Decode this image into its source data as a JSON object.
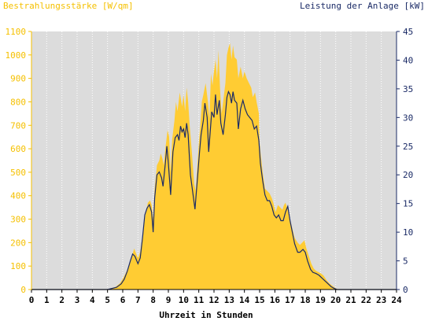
{
  "chart_data": {
    "type": "area",
    "ylabel_left": "Bestrahlungsstärke [W/qm]",
    "ylabel_right": "Leistung der Anlage [kW]",
    "xlabel": "Uhrzeit in Stunden",
    "xlim": [
      0,
      24
    ],
    "ylim_left": [
      0,
      1100
    ],
    "ylim_right": [
      0,
      45
    ],
    "x_ticks": [
      "0",
      "1",
      "2",
      "3",
      "4",
      "5",
      "6",
      "7",
      "8",
      "9",
      "10",
      "11",
      "12",
      "13",
      "14",
      "15",
      "16",
      "17",
      "18",
      "19",
      "20",
      "21",
      "22",
      "23",
      "24"
    ],
    "y_ticks_left": [
      "0",
      "100",
      "200",
      "300",
      "400",
      "500",
      "600",
      "700",
      "800",
      "900",
      "1000",
      "1100"
    ],
    "y_ticks_right": [
      "0",
      "5",
      "10",
      "15",
      "20",
      "25",
      "30",
      "35",
      "40",
      "45"
    ],
    "grid": "vertical dotted",
    "colors": {
      "irradiance": "#ffcc33",
      "power": "#1a2a66",
      "plot_background": "#dcdcdc",
      "left_axis": "#f5c000",
      "right_axis": "#1a2a66"
    },
    "series": [
      {
        "name": "Bestrahlungsstärke [W/qm]",
        "axis": "left",
        "style": "area",
        "points": [
          [
            0,
            0
          ],
          [
            5,
            0
          ],
          [
            5.2,
            5
          ],
          [
            5.5,
            10
          ],
          [
            5.8,
            25
          ],
          [
            6.0,
            45
          ],
          [
            6.2,
            70
          ],
          [
            6.4,
            100
          ],
          [
            6.6,
            140
          ],
          [
            6.75,
            175
          ],
          [
            6.9,
            150
          ],
          [
            7.0,
            135
          ],
          [
            7.15,
            160
          ],
          [
            7.3,
            230
          ],
          [
            7.5,
            320
          ],
          [
            7.65,
            370
          ],
          [
            7.8,
            380
          ],
          [
            7.9,
            360
          ],
          [
            8.0,
            300
          ],
          [
            8.1,
            430
          ],
          [
            8.25,
            530
          ],
          [
            8.4,
            550
          ],
          [
            8.5,
            580
          ],
          [
            8.6,
            560
          ],
          [
            8.7,
            530
          ],
          [
            8.8,
            600
          ],
          [
            8.95,
            680
          ],
          [
            9.05,
            650
          ],
          [
            9.15,
            500
          ],
          [
            9.25,
            640
          ],
          [
            9.4,
            720
          ],
          [
            9.5,
            800
          ],
          [
            9.6,
            760
          ],
          [
            9.75,
            840
          ],
          [
            9.9,
            780
          ],
          [
            10.0,
            830
          ],
          [
            10.1,
            760
          ],
          [
            10.2,
            860
          ],
          [
            10.3,
            800
          ],
          [
            10.4,
            700
          ],
          [
            10.55,
            580
          ],
          [
            10.7,
            450
          ],
          [
            10.8,
            420
          ],
          [
            10.9,
            520
          ],
          [
            11.0,
            620
          ],
          [
            11.1,
            700
          ],
          [
            11.2,
            800
          ],
          [
            11.3,
            830
          ],
          [
            11.45,
            880
          ],
          [
            11.6,
            800
          ],
          [
            11.7,
            730
          ],
          [
            11.8,
            920
          ],
          [
            11.9,
            870
          ],
          [
            12.0,
            930
          ],
          [
            12.1,
            980
          ],
          [
            12.2,
            900
          ],
          [
            12.3,
            1020
          ],
          [
            12.4,
            850
          ],
          [
            12.5,
            750
          ],
          [
            12.6,
            800
          ],
          [
            12.75,
            880
          ],
          [
            12.85,
            1000
          ],
          [
            12.95,
            1030
          ],
          [
            13.05,
            1050
          ],
          [
            13.15,
            980
          ],
          [
            13.25,
            1040
          ],
          [
            13.35,
            990
          ],
          [
            13.5,
            980
          ],
          [
            13.6,
            900
          ],
          [
            13.75,
            950
          ],
          [
            13.9,
            900
          ],
          [
            14.0,
            930
          ],
          [
            14.15,
            900
          ],
          [
            14.3,
            880
          ],
          [
            14.45,
            860
          ],
          [
            14.55,
            820
          ],
          [
            14.7,
            840
          ],
          [
            14.8,
            800
          ],
          [
            14.95,
            750
          ],
          [
            15.0,
            620
          ],
          [
            15.1,
            560
          ],
          [
            15.2,
            500
          ],
          [
            15.35,
            430
          ],
          [
            15.5,
            420
          ],
          [
            15.65,
            410
          ],
          [
            15.8,
            390
          ],
          [
            15.9,
            370
          ],
          [
            16.05,
            330
          ],
          [
            16.2,
            360
          ],
          [
            16.35,
            350
          ],
          [
            16.5,
            340
          ],
          [
            16.6,
            360
          ],
          [
            16.7,
            370
          ],
          [
            16.85,
            340
          ],
          [
            17.0,
            300
          ],
          [
            17.15,
            260
          ],
          [
            17.3,
            220
          ],
          [
            17.5,
            200
          ],
          [
            17.65,
            190
          ],
          [
            17.8,
            200
          ],
          [
            17.95,
            210
          ],
          [
            18.05,
            180
          ],
          [
            18.2,
            150
          ],
          [
            18.4,
            110
          ],
          [
            18.55,
            90
          ],
          [
            18.7,
            80
          ],
          [
            18.85,
            75
          ],
          [
            19.0,
            70
          ],
          [
            19.2,
            60
          ],
          [
            19.4,
            40
          ],
          [
            19.6,
            25
          ],
          [
            19.8,
            15
          ],
          [
            20.0,
            5
          ],
          [
            20.2,
            0
          ],
          [
            24,
            0
          ]
        ]
      },
      {
        "name": "Leistung der Anlage [kW]",
        "axis": "right",
        "style": "line",
        "points": [
          [
            0,
            0
          ],
          [
            5,
            0
          ],
          [
            5.3,
            0.2
          ],
          [
            5.6,
            0.4
          ],
          [
            5.9,
            1.0
          ],
          [
            6.1,
            1.8
          ],
          [
            6.3,
            3.2
          ],
          [
            6.5,
            5.0
          ],
          [
            6.65,
            6.2
          ],
          [
            6.8,
            5.8
          ],
          [
            7.0,
            4.5
          ],
          [
            7.15,
            5.5
          ],
          [
            7.3,
            9.0
          ],
          [
            7.45,
            13.0
          ],
          [
            7.6,
            14.2
          ],
          [
            7.75,
            14.8
          ],
          [
            7.9,
            13.5
          ],
          [
            8.0,
            10.0
          ],
          [
            8.1,
            16.0
          ],
          [
            8.25,
            20.0
          ],
          [
            8.4,
            20.5
          ],
          [
            8.55,
            19.5
          ],
          [
            8.65,
            18.0
          ],
          [
            8.8,
            22.0
          ],
          [
            8.9,
            25.0
          ],
          [
            9.0,
            22.0
          ],
          [
            9.15,
            16.5
          ],
          [
            9.3,
            24.0
          ],
          [
            9.45,
            26.5
          ],
          [
            9.6,
            27.0
          ],
          [
            9.7,
            26.0
          ],
          [
            9.8,
            28.5
          ],
          [
            9.9,
            27.5
          ],
          [
            10.0,
            28.0
          ],
          [
            10.1,
            26.5
          ],
          [
            10.2,
            29.0
          ],
          [
            10.3,
            27.0
          ],
          [
            10.45,
            20.0
          ],
          [
            10.6,
            17.0
          ],
          [
            10.75,
            14.0
          ],
          [
            10.9,
            19.0
          ],
          [
            11.05,
            24.0
          ],
          [
            11.15,
            27.0
          ],
          [
            11.3,
            29.5
          ],
          [
            11.4,
            32.5
          ],
          [
            11.55,
            30.0
          ],
          [
            11.65,
            24.0
          ],
          [
            11.75,
            27.5
          ],
          [
            11.85,
            31.0
          ],
          [
            12.0,
            30.0
          ],
          [
            12.1,
            34.0
          ],
          [
            12.2,
            30.5
          ],
          [
            12.35,
            33.0
          ],
          [
            12.45,
            29.0
          ],
          [
            12.6,
            27.0
          ],
          [
            12.75,
            30.5
          ],
          [
            12.85,
            33.5
          ],
          [
            12.95,
            34.5
          ],
          [
            13.05,
            34.0
          ],
          [
            13.15,
            32.5
          ],
          [
            13.25,
            34.5
          ],
          [
            13.35,
            33.0
          ],
          [
            13.5,
            32.5
          ],
          [
            13.6,
            28.0
          ],
          [
            13.75,
            31.5
          ],
          [
            13.9,
            33.0
          ],
          [
            14.05,
            31.5
          ],
          [
            14.2,
            30.5
          ],
          [
            14.35,
            30.0
          ],
          [
            14.5,
            29.5
          ],
          [
            14.65,
            28.0
          ],
          [
            14.8,
            28.5
          ],
          [
            14.95,
            26.0
          ],
          [
            15.05,
            22.0
          ],
          [
            15.2,
            19.0
          ],
          [
            15.35,
            16.5
          ],
          [
            15.5,
            15.5
          ],
          [
            15.65,
            15.5
          ],
          [
            15.8,
            14.5
          ],
          [
            15.95,
            13.0
          ],
          [
            16.1,
            12.5
          ],
          [
            16.25,
            13.0
          ],
          [
            16.4,
            12.0
          ],
          [
            16.55,
            12.0
          ],
          [
            16.7,
            13.5
          ],
          [
            16.85,
            14.5
          ],
          [
            17.0,
            12.0
          ],
          [
            17.15,
            10.0
          ],
          [
            17.3,
            8.0
          ],
          [
            17.5,
            6.5
          ],
          [
            17.65,
            6.5
          ],
          [
            17.85,
            7.0
          ],
          [
            18.0,
            6.5
          ],
          [
            18.15,
            5.0
          ],
          [
            18.35,
            3.5
          ],
          [
            18.5,
            3.0
          ],
          [
            18.7,
            2.8
          ],
          [
            18.9,
            2.5
          ],
          [
            19.1,
            2.0
          ],
          [
            19.3,
            1.5
          ],
          [
            19.5,
            1.0
          ],
          [
            19.7,
            0.5
          ],
          [
            19.9,
            0.2
          ],
          [
            20.1,
            0
          ],
          [
            24,
            0
          ]
        ]
      }
    ]
  }
}
